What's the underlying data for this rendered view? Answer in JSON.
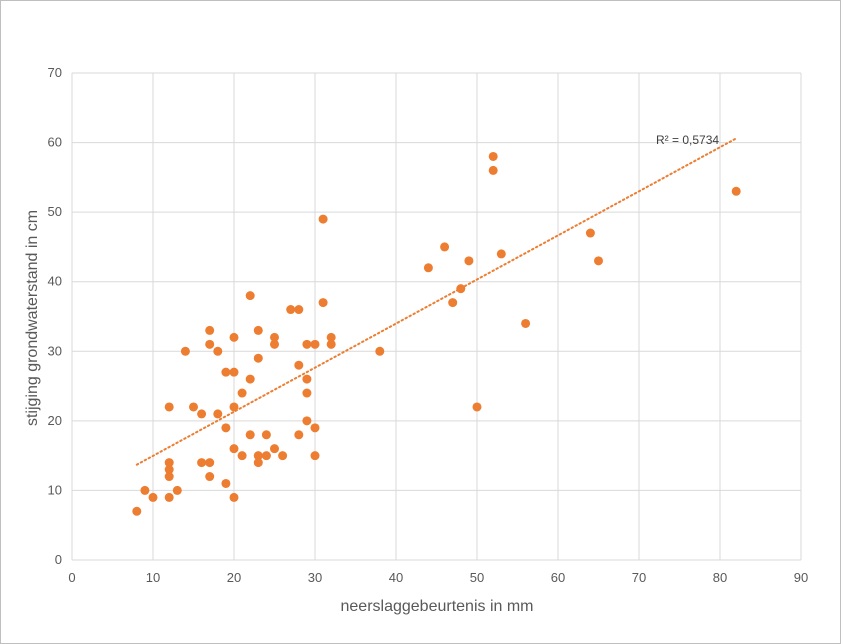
{
  "chart_data": {
    "type": "scatter",
    "title": "",
    "xlabel": "neerslaggebeurtenis in mm",
    "ylabel": "stijging grondwaterstand in cm",
    "xlim": [
      0,
      90
    ],
    "ylim": [
      0,
      70
    ],
    "xticks": [
      "0",
      "10",
      "20",
      "30",
      "40",
      "50",
      "60",
      "70",
      "80",
      "90"
    ],
    "yticks": [
      "0",
      "10",
      "20",
      "30",
      "40",
      "50",
      "60",
      "70"
    ],
    "grid": true,
    "legend": "none",
    "marker_color": "#ED7D31",
    "trendline": {
      "type": "linear",
      "label": "R² = 0,5734",
      "x": [
        8,
        82
      ],
      "y": [
        13.7,
        60.6
      ],
      "style": "dotted",
      "color": "#ED7D31"
    },
    "points": [
      [
        8,
        7
      ],
      [
        9,
        10
      ],
      [
        10,
        9
      ],
      [
        12,
        22
      ],
      [
        12,
        14
      ],
      [
        12,
        13
      ],
      [
        12,
        12
      ],
      [
        12,
        9
      ],
      [
        13,
        10
      ],
      [
        14,
        30
      ],
      [
        15,
        22
      ],
      [
        16,
        21
      ],
      [
        16,
        14
      ],
      [
        17,
        33
      ],
      [
        17,
        31
      ],
      [
        17,
        14
      ],
      [
        17,
        12
      ],
      [
        18,
        30
      ],
      [
        18,
        21
      ],
      [
        19,
        27
      ],
      [
        19,
        19
      ],
      [
        19,
        11
      ],
      [
        20,
        32
      ],
      [
        20,
        27
      ],
      [
        20,
        22
      ],
      [
        20,
        16
      ],
      [
        20,
        9
      ],
      [
        21,
        24
      ],
      [
        21,
        15
      ],
      [
        22,
        38
      ],
      [
        22,
        26
      ],
      [
        22,
        18
      ],
      [
        23,
        33
      ],
      [
        23,
        29
      ],
      [
        23,
        15
      ],
      [
        23,
        14
      ],
      [
        24,
        18
      ],
      [
        24,
        15
      ],
      [
        25,
        32
      ],
      [
        25,
        31
      ],
      [
        25,
        16
      ],
      [
        26,
        15
      ],
      [
        27,
        36
      ],
      [
        28,
        36
      ],
      [
        28,
        28
      ],
      [
        28,
        18
      ],
      [
        29,
        31
      ],
      [
        29,
        26
      ],
      [
        29,
        24
      ],
      [
        29,
        20
      ],
      [
        30,
        31
      ],
      [
        30,
        19
      ],
      [
        30,
        15
      ],
      [
        31,
        49
      ],
      [
        31,
        37
      ],
      [
        32,
        32
      ],
      [
        32,
        31
      ],
      [
        38,
        30
      ],
      [
        44,
        42
      ],
      [
        46,
        45
      ],
      [
        47,
        37
      ],
      [
        48,
        39
      ],
      [
        49,
        43
      ],
      [
        50,
        22
      ],
      [
        52,
        58
      ],
      [
        52,
        56
      ],
      [
        53,
        44
      ],
      [
        56,
        34
      ],
      [
        64,
        47
      ],
      [
        65,
        43
      ],
      [
        82,
        53
      ]
    ]
  }
}
